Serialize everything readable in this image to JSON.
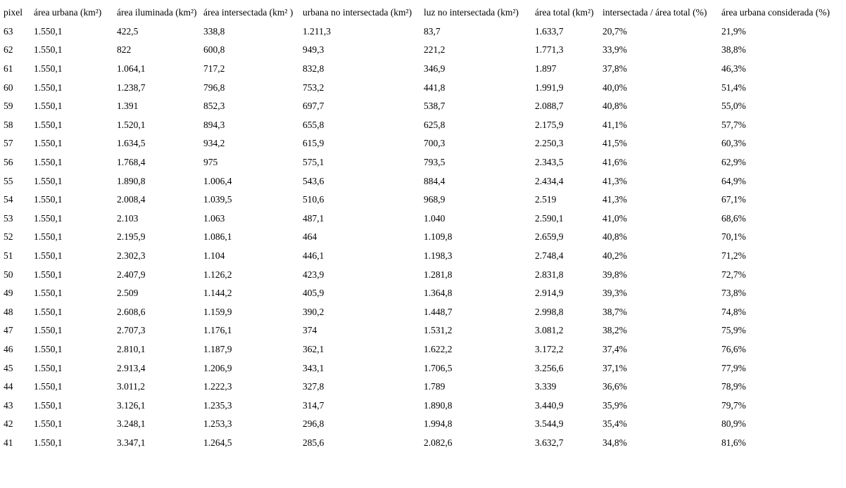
{
  "table": {
    "columns": [
      "pixel",
      "área urbana (km²)",
      "área iluminada (km²)",
      "área intersectada (km² )",
      "urbana no intersectada (km²)",
      "luz no intersectada (km²)",
      "área total (km²)",
      "intersectada / área total (%)",
      "área urbana considerada (%)"
    ],
    "rows": [
      [
        "63",
        "1.550,1",
        "422,5",
        "338,8",
        "1.211,3",
        "83,7",
        "1.633,7",
        "20,7%",
        "21,9%"
      ],
      [
        "62",
        "1.550,1",
        "822",
        "600,8",
        "949,3",
        "221,2",
        "1.771,3",
        "33,9%",
        "38,8%"
      ],
      [
        "61",
        "1.550,1",
        "1.064,1",
        "717,2",
        "832,8",
        "346,9",
        "1.897",
        "37,8%",
        "46,3%"
      ],
      [
        "60",
        "1.550,1",
        "1.238,7",
        "796,8",
        "753,2",
        "441,8",
        "1.991,9",
        "40,0%",
        "51,4%"
      ],
      [
        "59",
        "1.550,1",
        "1.391",
        "852,3",
        "697,7",
        "538,7",
        "2.088,7",
        "40,8%",
        "55,0%"
      ],
      [
        "58",
        "1.550,1",
        "1.520,1",
        "894,3",
        "655,8",
        "625,8",
        "2.175,9",
        "41,1%",
        "57,7%"
      ],
      [
        "57",
        "1.550,1",
        "1.634,5",
        "934,2",
        "615,9",
        "700,3",
        "2.250,3",
        "41,5%",
        "60,3%"
      ],
      [
        "56",
        "1.550,1",
        "1.768,4",
        "975",
        "575,1",
        "793,5",
        "2.343,5",
        "41,6%",
        "62,9%"
      ],
      [
        "55",
        "1.550,1",
        "1.890,8",
        "1.006,4",
        "543,6",
        "884,4",
        "2.434,4",
        "41,3%",
        "64,9%"
      ],
      [
        "54",
        "1.550,1",
        "2.008,4",
        "1.039,5",
        "510,6",
        "968,9",
        "2.519",
        "41,3%",
        "67,1%"
      ],
      [
        "53",
        "1.550,1",
        "2.103",
        "1.063",
        "487,1",
        "1.040",
        "2.590,1",
        "41,0%",
        "68,6%"
      ],
      [
        "52",
        "1.550,1",
        "2.195,9",
        "1.086,1",
        "464",
        "1.109,8",
        "2.659,9",
        "40,8%",
        "70,1%"
      ],
      [
        "51",
        "1.550,1",
        "2.302,3",
        "1.104",
        "446,1",
        "1.198,3",
        "2.748,4",
        "40,2%",
        "71,2%"
      ],
      [
        "50",
        "1.550,1",
        "2.407,9",
        "1.126,2",
        "423,9",
        "1.281,8",
        "2.831,8",
        "39,8%",
        "72,7%"
      ],
      [
        "49",
        "1.550,1",
        "2.509",
        "1.144,2",
        "405,9",
        "1.364,8",
        "2.914,9",
        "39,3%",
        "73,8%"
      ],
      [
        "48",
        "1.550,1",
        "2.608,6",
        "1.159,9",
        "390,2",
        "1.448,7",
        "2.998,8",
        "38,7%",
        "74,8%"
      ],
      [
        "47",
        "1.550,1",
        "2.707,3",
        "1.176,1",
        "374",
        "1.531,2",
        "3.081,2",
        "38,2%",
        "75,9%"
      ],
      [
        "46",
        "1.550,1",
        "2.810,1",
        "1.187,9",
        "362,1",
        "1.622,2",
        "3.172,2",
        "37,4%",
        "76,6%"
      ],
      [
        "45",
        "1.550,1",
        "2.913,4",
        "1.206,9",
        "343,1",
        "1.706,5",
        "3.256,6",
        "37,1%",
        "77,9%"
      ],
      [
        "44",
        "1.550,1",
        "3.011,2",
        "1.222,3",
        "327,8",
        "1.789",
        "3.339",
        "36,6%",
        "78,9%"
      ],
      [
        "43",
        "1.550,1",
        "3.126,1",
        "1.235,3",
        "314,7",
        "1.890,8",
        "3.440,9",
        "35,9%",
        "79,7%"
      ],
      [
        "42",
        "1.550,1",
        "3.248,1",
        "1.253,3",
        "296,8",
        "1.994,8",
        "3.544,9",
        "35,4%",
        "80,9%"
      ],
      [
        "41",
        "1.550,1",
        "3.347,1",
        "1.264,5",
        "285,6",
        "2.082,6",
        "3.632,7",
        "34,8%",
        "81,6%"
      ]
    ]
  }
}
